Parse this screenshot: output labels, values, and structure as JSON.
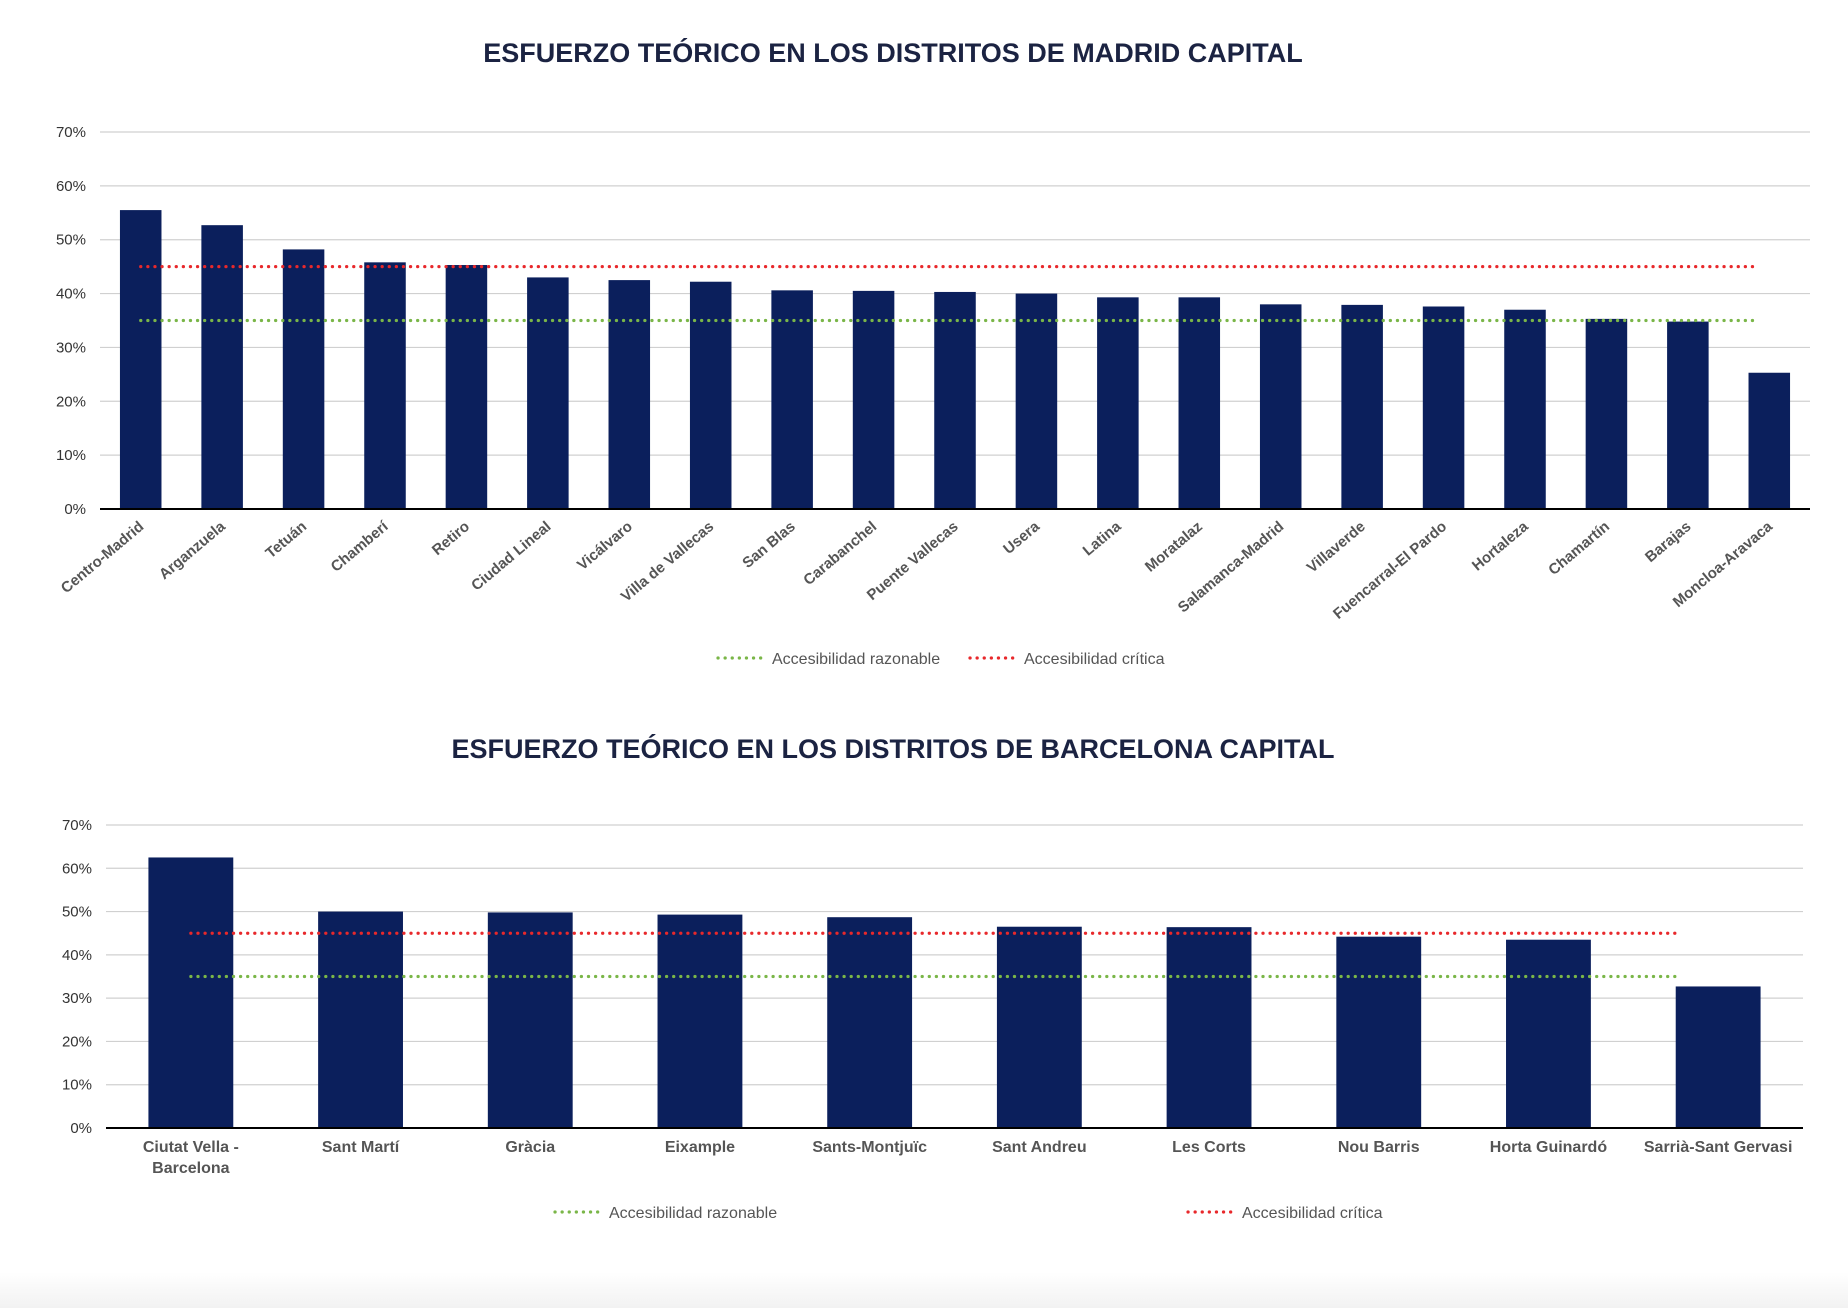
{
  "colors": {
    "bar": "#0b1f5c",
    "reasonable_line": "#7ab648",
    "critical_line": "#e8282b",
    "grid": "#d0d0d0",
    "axis": "#000000"
  },
  "chart_data": [
    {
      "id": "madrid",
      "type": "bar",
      "title": "ESFUERZO TEÓRICO EN LOS DISTRITOS DE MADRID CAPITAL",
      "xlabel": "",
      "ylabel": "",
      "ylim": [
        0,
        70
      ],
      "yticks": [
        "0%",
        "10%",
        "20%",
        "30%",
        "40%",
        "50%",
        "60%",
        "70%"
      ],
      "grid": true,
      "categories": [
        "Centro-Madrid",
        "Arganzuela",
        "Tetuán",
        "Chamberí",
        "Retiro",
        "Ciudad Lineal",
        "Vicálvaro",
        "Villa de Vallecas",
        "San Blas",
        "Carabanchel",
        "Puente Vallecas",
        "Usera",
        "Latina",
        "Moratalaz",
        "Salamanca-Madrid",
        "Villaverde",
        "Fuencarral-El Pardo",
        "Hortaleza",
        "Chamartín",
        "Barajas",
        "Moncloa-Aravaca"
      ],
      "values": [
        55.5,
        52.7,
        48.2,
        45.8,
        45.3,
        43.0,
        42.5,
        42.2,
        40.6,
        40.5,
        40.3,
        40.0,
        39.3,
        39.3,
        38.0,
        37.9,
        37.6,
        37.0,
        35.3,
        34.8,
        25.3
      ],
      "reference_lines": [
        {
          "name": "Accesibilidad razonable",
          "value": 35,
          "color": "#7ab648"
        },
        {
          "name": "Accesibilidad crítica",
          "value": 45,
          "color": "#e8282b"
        }
      ],
      "legend_position": "bottom-center"
    },
    {
      "id": "barcelona",
      "type": "bar",
      "title": "ESFUERZO TEÓRICO EN LOS DISTRITOS DE BARCELONA CAPITAL",
      "xlabel": "",
      "ylabel": "",
      "ylim": [
        0,
        70
      ],
      "yticks": [
        "0%",
        "10%",
        "20%",
        "30%",
        "40%",
        "50%",
        "60%",
        "70%"
      ],
      "grid": true,
      "categories": [
        "Ciutat Vella - Barcelona",
        "Sant Martí",
        "Gràcia",
        "Eixample",
        "Sants-Montjuïc",
        "Sant Andreu",
        "Les Corts",
        "Nou Barris",
        "Horta Guinardó",
        "Sarrià-Sant Gervasi"
      ],
      "category_lines": [
        [
          "Ciutat Vella -",
          "Barcelona"
        ],
        [
          "Sant Martí"
        ],
        [
          "Gràcia"
        ],
        [
          "Eixample"
        ],
        [
          "Sants-Montjuïc"
        ],
        [
          "Sant Andreu"
        ],
        [
          "Les Corts"
        ],
        [
          "Nou Barris"
        ],
        [
          "Horta Guinardó"
        ],
        [
          "Sarrià-Sant Gervasi"
        ]
      ],
      "values": [
        62.5,
        50.0,
        49.8,
        49.3,
        48.7,
        46.5,
        46.4,
        44.2,
        43.5,
        32.7
      ],
      "reference_lines": [
        {
          "name": "Accesibilidad razonable",
          "value": 35,
          "color": "#7ab648"
        },
        {
          "name": "Accesibilidad crítica",
          "value": 45,
          "color": "#e8282b"
        }
      ],
      "legend_position": "bottom-center"
    }
  ]
}
